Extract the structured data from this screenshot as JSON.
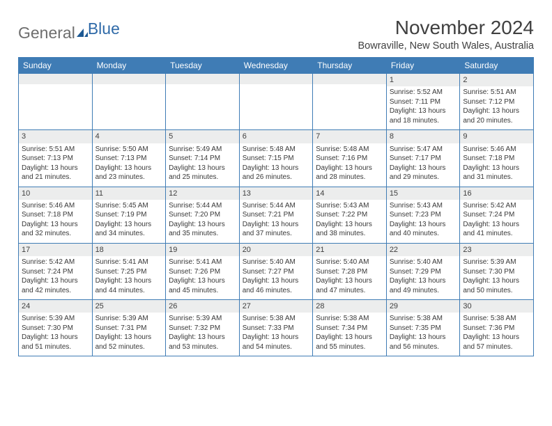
{
  "logo": {
    "word1": "General",
    "word2": "Blue"
  },
  "title": "November 2024",
  "location": "Bowraville, New South Wales, Australia",
  "colors": {
    "header_bg": "#3f7cb5",
    "header_text": "#ffffff",
    "daynum_bg": "#eceded",
    "border": "#3f7cb5",
    "logo_blue": "#2f6aa8",
    "text": "#404040"
  },
  "weekdays": [
    "Sunday",
    "Monday",
    "Tuesday",
    "Wednesday",
    "Thursday",
    "Friday",
    "Saturday"
  ],
  "weeks": [
    [
      null,
      null,
      null,
      null,
      null,
      {
        "n": "1",
        "sr": "5:52 AM",
        "ss": "7:11 PM",
        "dl": "13 hours and 18 minutes."
      },
      {
        "n": "2",
        "sr": "5:51 AM",
        "ss": "7:12 PM",
        "dl": "13 hours and 20 minutes."
      }
    ],
    [
      {
        "n": "3",
        "sr": "5:51 AM",
        "ss": "7:13 PM",
        "dl": "13 hours and 21 minutes."
      },
      {
        "n": "4",
        "sr": "5:50 AM",
        "ss": "7:13 PM",
        "dl": "13 hours and 23 minutes."
      },
      {
        "n": "5",
        "sr": "5:49 AM",
        "ss": "7:14 PM",
        "dl": "13 hours and 25 minutes."
      },
      {
        "n": "6",
        "sr": "5:48 AM",
        "ss": "7:15 PM",
        "dl": "13 hours and 26 minutes."
      },
      {
        "n": "7",
        "sr": "5:48 AM",
        "ss": "7:16 PM",
        "dl": "13 hours and 28 minutes."
      },
      {
        "n": "8",
        "sr": "5:47 AM",
        "ss": "7:17 PM",
        "dl": "13 hours and 29 minutes."
      },
      {
        "n": "9",
        "sr": "5:46 AM",
        "ss": "7:18 PM",
        "dl": "13 hours and 31 minutes."
      }
    ],
    [
      {
        "n": "10",
        "sr": "5:46 AM",
        "ss": "7:18 PM",
        "dl": "13 hours and 32 minutes."
      },
      {
        "n": "11",
        "sr": "5:45 AM",
        "ss": "7:19 PM",
        "dl": "13 hours and 34 minutes."
      },
      {
        "n": "12",
        "sr": "5:44 AM",
        "ss": "7:20 PM",
        "dl": "13 hours and 35 minutes."
      },
      {
        "n": "13",
        "sr": "5:44 AM",
        "ss": "7:21 PM",
        "dl": "13 hours and 37 minutes."
      },
      {
        "n": "14",
        "sr": "5:43 AM",
        "ss": "7:22 PM",
        "dl": "13 hours and 38 minutes."
      },
      {
        "n": "15",
        "sr": "5:43 AM",
        "ss": "7:23 PM",
        "dl": "13 hours and 40 minutes."
      },
      {
        "n": "16",
        "sr": "5:42 AM",
        "ss": "7:24 PM",
        "dl": "13 hours and 41 minutes."
      }
    ],
    [
      {
        "n": "17",
        "sr": "5:42 AM",
        "ss": "7:24 PM",
        "dl": "13 hours and 42 minutes."
      },
      {
        "n": "18",
        "sr": "5:41 AM",
        "ss": "7:25 PM",
        "dl": "13 hours and 44 minutes."
      },
      {
        "n": "19",
        "sr": "5:41 AM",
        "ss": "7:26 PM",
        "dl": "13 hours and 45 minutes."
      },
      {
        "n": "20",
        "sr": "5:40 AM",
        "ss": "7:27 PM",
        "dl": "13 hours and 46 minutes."
      },
      {
        "n": "21",
        "sr": "5:40 AM",
        "ss": "7:28 PM",
        "dl": "13 hours and 47 minutes."
      },
      {
        "n": "22",
        "sr": "5:40 AM",
        "ss": "7:29 PM",
        "dl": "13 hours and 49 minutes."
      },
      {
        "n": "23",
        "sr": "5:39 AM",
        "ss": "7:30 PM",
        "dl": "13 hours and 50 minutes."
      }
    ],
    [
      {
        "n": "24",
        "sr": "5:39 AM",
        "ss": "7:30 PM",
        "dl": "13 hours and 51 minutes."
      },
      {
        "n": "25",
        "sr": "5:39 AM",
        "ss": "7:31 PM",
        "dl": "13 hours and 52 minutes."
      },
      {
        "n": "26",
        "sr": "5:39 AM",
        "ss": "7:32 PM",
        "dl": "13 hours and 53 minutes."
      },
      {
        "n": "27",
        "sr": "5:38 AM",
        "ss": "7:33 PM",
        "dl": "13 hours and 54 minutes."
      },
      {
        "n": "28",
        "sr": "5:38 AM",
        "ss": "7:34 PM",
        "dl": "13 hours and 55 minutes."
      },
      {
        "n": "29",
        "sr": "5:38 AM",
        "ss": "7:35 PM",
        "dl": "13 hours and 56 minutes."
      },
      {
        "n": "30",
        "sr": "5:38 AM",
        "ss": "7:36 PM",
        "dl": "13 hours and 57 minutes."
      }
    ]
  ],
  "labels": {
    "sunrise": "Sunrise:",
    "sunset": "Sunset:",
    "daylight": "Daylight:"
  }
}
